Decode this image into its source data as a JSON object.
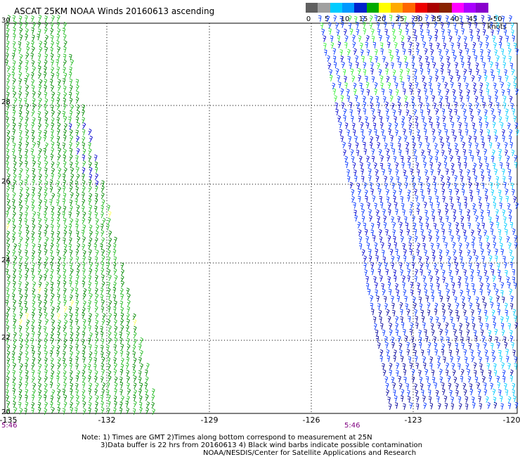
{
  "title": "ASCAT 25KM NOAA Winds 20160613 ascending",
  "legend": {
    "ticks": [
      "0",
      "5",
      "10",
      "15",
      "20",
      "25",
      "30",
      "35",
      "40",
      "45",
      ">50 knots"
    ],
    "colors": [
      "#606060",
      "#a0a0a0",
      "#00ccff",
      "#0099ff",
      "#0022cc",
      "#00aa00",
      "#ffff00",
      "#ffaa00",
      "#ff6600",
      "#ee0000",
      "#aa0000",
      "#882200",
      "#ff00ff",
      "#aa00ff",
      "#8800cc"
    ]
  },
  "map": {
    "lon_labels": [
      "-135",
      "-132",
      "-129",
      "-126",
      "-123",
      "-120"
    ],
    "lat_labels": [
      "30",
      "28",
      "26",
      "24",
      "22",
      "20"
    ],
    "time_labels": [
      "5:46",
      "5:46"
    ],
    "grid": true,
    "barb_colors": {
      "calm": "#00aa00",
      "light": "#33ee33",
      "moderate": "#0000cc",
      "fresh": "#0033ff",
      "strong": "#00ccff",
      "contaminated": "#ffff66"
    }
  },
  "notes": {
    "line1": "Note: 1) Times are GMT 2)Times along bottom correspond to measurement at 25N",
    "line2": "3)Data buffer is 22 hrs from 20160613 4) Black wind barbs indicate possible contamination",
    "line3": "NOAA/NESDIS/Center for Satellite Applications and Research"
  }
}
